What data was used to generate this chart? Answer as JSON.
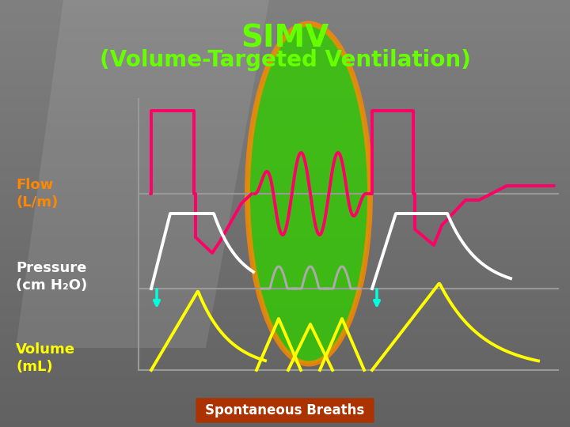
{
  "title_line1": "SIMV",
  "title_line2": "(Volume-Targeted Ventilation)",
  "title_color": "#66ff00",
  "flow_label": "Flow\n(L/m)",
  "pressure_label": "Pressure\n(cm H₂O)",
  "volume_label": "Volume\n(mL)",
  "spontaneous_label": "Spontaneous Breaths",
  "flow_color": "#ff0066",
  "pressure_color": "#ffffff",
  "volume_color": "#ffff00",
  "spont_pressure_color": "#aaaaaa",
  "cyan_color": "#00ffdd",
  "ellipse_fill": "#33cc00",
  "ellipse_edge": "#ff8800",
  "label_color_flow": "#ff8800",
  "label_color_pressure": "#ffffff",
  "label_color_volume": "#ffff00",
  "spontaneous_bg": "#aa3300",
  "spontaneous_text_color": "#ffffff",
  "baseline_color": "#999999"
}
